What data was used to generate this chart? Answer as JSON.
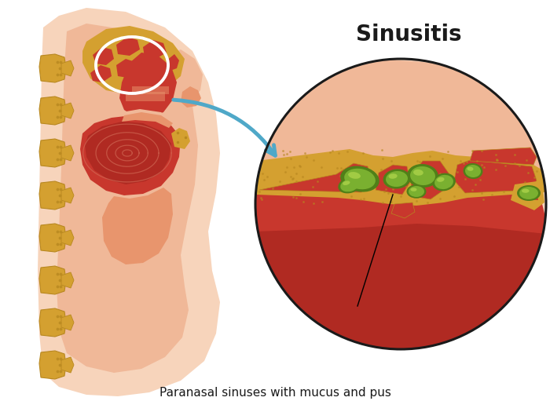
{
  "title": "Sinusitis",
  "subtitle": "Paranasal sinuses with mucus and pus",
  "bg_color": "#ffffff",
  "skin_lightest": "#f7d4bb",
  "skin_light": "#f0b898",
  "skin_medium": "#e8956d",
  "skin_dark": "#d4705a",
  "red_tissue": "#c8372d",
  "red_tissue2": "#b02a22",
  "red_tissue_light": "#d4605a",
  "bone_yellow": "#d4a030",
  "bone_light": "#e8c55a",
  "bone_dark": "#b88820",
  "green_mucus": "#7ab030",
  "green_mucus_light": "#a8d048",
  "green_mucus_dark": "#508018",
  "circle_outline": "#1a1a1a",
  "arrow_color": "#4fa8c8",
  "white_circle": "#ffffff",
  "text_color": "#1a1a1a",
  "title_fontsize": 20,
  "label_fontsize": 11
}
